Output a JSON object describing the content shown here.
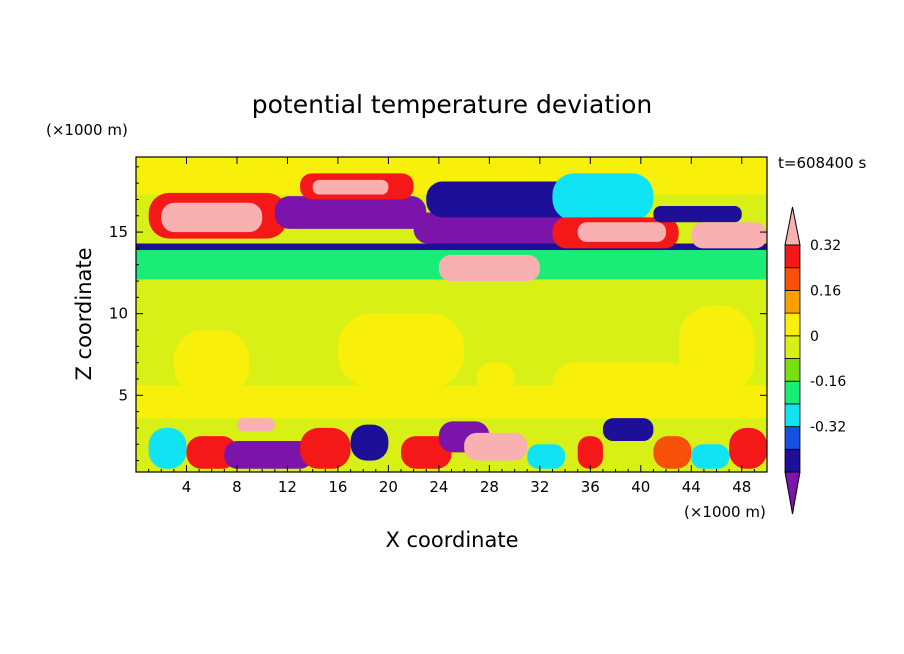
{
  "chart_data": {
    "type": "heatmap",
    "title": "potential temperature deviation",
    "xlabel": "X coordinate",
    "ylabel": "Z coordinate",
    "x_unit": "(×1000 m)",
    "y_unit": "(×1000 m)",
    "time_label": "t=608400 s",
    "xlim": [
      0,
      50
    ],
    "ylim": [
      0.3,
      19.6
    ],
    "x_ticks": [
      4,
      8,
      12,
      16,
      20,
      24,
      28,
      32,
      36,
      40,
      44,
      48
    ],
    "y_ticks": [
      5,
      10,
      15
    ],
    "colorbar": {
      "levels": [
        -0.48,
        -0.4,
        -0.32,
        -0.24,
        -0.16,
        -0.08,
        0,
        0.08,
        0.16,
        0.24,
        0.32,
        0.4
      ],
      "colors": [
        "#7a14ab",
        "#1e0f99",
        "#1650e0",
        "#10e4f4",
        "#1aec78",
        "#78e010",
        "#d8f016",
        "#f8f00a",
        "#f8a000",
        "#f85008",
        "#f41818",
        "#f8b0b0"
      ],
      "labels": [
        "0.32",
        "0.16",
        "0",
        "-0.16",
        "-0.32"
      ],
      "label_values": [
        0.32,
        0.16,
        0,
        -0.16,
        -0.32
      ]
    },
    "regions": [
      {
        "x": [
          0,
          50
        ],
        "z": [
          0.3,
          19.6
        ],
        "value": 0.04
      },
      {
        "x": [
          0,
          50
        ],
        "z": [
          3.6,
          5.6
        ],
        "value": 0.1
      },
      {
        "x": [
          0,
          50
        ],
        "z": [
          12.1,
          14.1
        ],
        "value": -0.14
      },
      {
        "x": [
          0,
          50
        ],
        "z": [
          13.9,
          14.3
        ],
        "value": -0.4
      },
      {
        "x": [
          0,
          50
        ],
        "z": [
          17.3,
          19.6
        ],
        "value": 0.1
      },
      {
        "x": [
          1,
          12
        ],
        "z": [
          14.6,
          17.4
        ],
        "value": 0.36
      },
      {
        "x": [
          2,
          10
        ],
        "z": [
          15.0,
          16.8
        ],
        "value": 0.44
      },
      {
        "x": [
          11,
          23
        ],
        "z": [
          15.2,
          17.2
        ],
        "value": -0.44
      },
      {
        "x": [
          13,
          22
        ],
        "z": [
          17.0,
          18.6
        ],
        "value": 0.36
      },
      {
        "x": [
          14,
          20
        ],
        "z": [
          17.3,
          18.2
        ],
        "value": 0.44
      },
      {
        "x": [
          22,
          40
        ],
        "z": [
          14.3,
          16.2
        ],
        "value": -0.44
      },
      {
        "x": [
          23,
          38
        ],
        "z": [
          15.9,
          18.1
        ],
        "value": -0.36
      },
      {
        "x": [
          33,
          41
        ],
        "z": [
          15.7,
          18.6
        ],
        "value": -0.2
      },
      {
        "x": [
          33,
          43
        ],
        "z": [
          14.0,
          15.9
        ],
        "value": 0.36
      },
      {
        "x": [
          35,
          42
        ],
        "z": [
          14.4,
          15.6
        ],
        "value": 0.44
      },
      {
        "x": [
          41,
          48
        ],
        "z": [
          15.6,
          16.6
        ],
        "value": -0.4
      },
      {
        "x": [
          44,
          50
        ],
        "z": [
          14.0,
          15.6
        ],
        "value": 0.44
      },
      {
        "x": [
          24,
          32
        ],
        "z": [
          12.0,
          13.6
        ],
        "value": 0.44
      },
      {
        "x": [
          3,
          9
        ],
        "z": [
          5.0,
          9.0
        ],
        "value": 0.1
      },
      {
        "x": [
          16,
          26
        ],
        "z": [
          5.5,
          10.0
        ],
        "value": 0.1
      },
      {
        "x": [
          27,
          30
        ],
        "z": [
          5.0,
          7.0
        ],
        "value": 0.1
      },
      {
        "x": [
          33,
          44
        ],
        "z": [
          4.0,
          7.0
        ],
        "value": 0.1
      },
      {
        "x": [
          43,
          49
        ],
        "z": [
          5.0,
          10.5
        ],
        "value": 0.1
      },
      {
        "x": [
          1,
          4
        ],
        "z": [
          0.5,
          3.0
        ],
        "value": -0.24
      },
      {
        "x": [
          4,
          8
        ],
        "z": [
          0.5,
          2.5
        ],
        "value": 0.36
      },
      {
        "x": [
          7,
          14
        ],
        "z": [
          0.5,
          2.2
        ],
        "value": -0.44
      },
      {
        "x": [
          8,
          11
        ],
        "z": [
          2.8,
          3.6
        ],
        "value": 0.44
      },
      {
        "x": [
          13,
          17
        ],
        "z": [
          0.5,
          3.0
        ],
        "value": 0.32
      },
      {
        "x": [
          17,
          20
        ],
        "z": [
          1.0,
          3.2
        ],
        "value": -0.36
      },
      {
        "x": [
          21,
          25
        ],
        "z": [
          0.5,
          2.5
        ],
        "value": 0.36
      },
      {
        "x": [
          24,
          28
        ],
        "z": [
          1.5,
          3.4
        ],
        "value": -0.44
      },
      {
        "x": [
          26,
          31
        ],
        "z": [
          1.0,
          2.7
        ],
        "value": 0.44
      },
      {
        "x": [
          31,
          34
        ],
        "z": [
          0.5,
          2.0
        ],
        "value": -0.24
      },
      {
        "x": [
          35,
          37
        ],
        "z": [
          0.5,
          2.5
        ],
        "value": 0.32
      },
      {
        "x": [
          37,
          41
        ],
        "z": [
          2.2,
          3.6
        ],
        "value": -0.4
      },
      {
        "x": [
          41,
          44
        ],
        "z": [
          0.5,
          2.5
        ],
        "value": 0.28
      },
      {
        "x": [
          44,
          47
        ],
        "z": [
          0.5,
          2.0
        ],
        "value": -0.24
      },
      {
        "x": [
          47,
          50
        ],
        "z": [
          0.5,
          3.0
        ],
        "value": 0.32
      }
    ]
  }
}
